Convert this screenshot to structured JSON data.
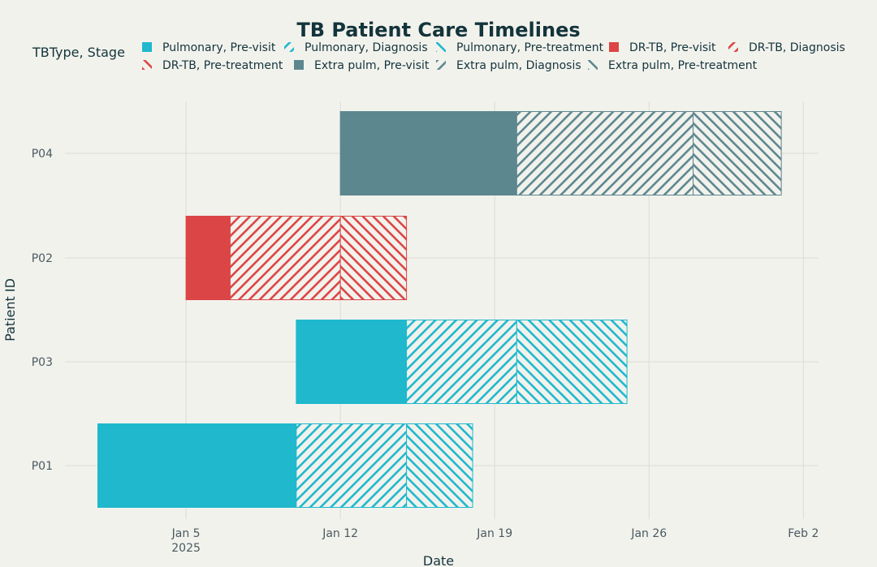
{
  "chart_data": {
    "type": "bar",
    "orientation": "horizontal",
    "title": "TB Patient Care Timelines",
    "xlabel": "Date",
    "ylabel": "Patient ID",
    "legend_title": "TBType, Stage",
    "legend_position": "top",
    "grid": true,
    "xlim": [
      "2025-01-01",
      "2025-02-02"
    ],
    "x_ticks": [
      {
        "date": "2025-01-05",
        "label": "Jan 5",
        "sublabel": "2025"
      },
      {
        "date": "2025-01-12",
        "label": "Jan 12",
        "sublabel": ""
      },
      {
        "date": "2025-01-19",
        "label": "Jan 19",
        "sublabel": ""
      },
      {
        "date": "2025-01-26",
        "label": "Jan 26",
        "sublabel": ""
      },
      {
        "date": "2025-02-02",
        "label": "Feb 2",
        "sublabel": ""
      }
    ],
    "categories": [
      "P01",
      "P03",
      "P02",
      "P04"
    ],
    "stage_patterns": {
      "Pre-visit": "solid",
      "Diagnosis": "forward-diagonal",
      "Pre-treatment": "backward-diagonal"
    },
    "type_colors": {
      "Pulmonary": "#1fb8cd",
      "DR-TB": "#db4545",
      "Extra pulm": "#5d878f"
    },
    "legend": [
      {
        "label": "Pulmonary, Pre-visit",
        "tbtype": "Pulmonary",
        "stage": "Pre-visit"
      },
      {
        "label": "Pulmonary, Diagnosis",
        "tbtype": "Pulmonary",
        "stage": "Diagnosis"
      },
      {
        "label": "Pulmonary, Pre-treatment",
        "tbtype": "Pulmonary",
        "stage": "Pre-treatment"
      },
      {
        "label": "DR-TB, Pre-visit",
        "tbtype": "DR-TB",
        "stage": "Pre-visit"
      },
      {
        "label": "DR-TB, Diagnosis",
        "tbtype": "DR-TB",
        "stage": "Diagnosis"
      },
      {
        "label": "DR-TB, Pre-treatment",
        "tbtype": "DR-TB",
        "stage": "Pre-treatment"
      },
      {
        "label": "Extra pulm, Pre-visit",
        "tbtype": "Extra pulm",
        "stage": "Pre-visit"
      },
      {
        "label": "Extra pulm, Diagnosis",
        "tbtype": "Extra pulm",
        "stage": "Diagnosis"
      },
      {
        "label": "Extra pulm, Pre-treatment",
        "tbtype": "Extra pulm",
        "stage": "Pre-treatment"
      }
    ],
    "series": [
      {
        "patient": "P01",
        "tbtype": "Pulmonary",
        "stage": "Pre-visit",
        "start": "2025-01-01",
        "end": "2025-01-10"
      },
      {
        "patient": "P01",
        "tbtype": "Pulmonary",
        "stage": "Diagnosis",
        "start": "2025-01-10",
        "end": "2025-01-15"
      },
      {
        "patient": "P01",
        "tbtype": "Pulmonary",
        "stage": "Pre-treatment",
        "start": "2025-01-15",
        "end": "2025-01-18"
      },
      {
        "patient": "P03",
        "tbtype": "Pulmonary",
        "stage": "Pre-visit",
        "start": "2025-01-10",
        "end": "2025-01-15"
      },
      {
        "patient": "P03",
        "tbtype": "Pulmonary",
        "stage": "Diagnosis",
        "start": "2025-01-15",
        "end": "2025-01-20"
      },
      {
        "patient": "P03",
        "tbtype": "Pulmonary",
        "stage": "Pre-treatment",
        "start": "2025-01-20",
        "end": "2025-01-25"
      },
      {
        "patient": "P02",
        "tbtype": "DR-TB",
        "stage": "Pre-visit",
        "start": "2025-01-05",
        "end": "2025-01-07"
      },
      {
        "patient": "P02",
        "tbtype": "DR-TB",
        "stage": "Diagnosis",
        "start": "2025-01-07",
        "end": "2025-01-12"
      },
      {
        "patient": "P02",
        "tbtype": "DR-TB",
        "stage": "Pre-treatment",
        "start": "2025-01-12",
        "end": "2025-01-15"
      },
      {
        "patient": "P04",
        "tbtype": "Extra pulm",
        "stage": "Pre-visit",
        "start": "2025-01-12",
        "end": "2025-01-20"
      },
      {
        "patient": "P04",
        "tbtype": "Extra pulm",
        "stage": "Diagnosis",
        "start": "2025-01-20",
        "end": "2025-01-28"
      },
      {
        "patient": "P04",
        "tbtype": "Extra pulm",
        "stage": "Pre-treatment",
        "start": "2025-01-28",
        "end": "2025-02-01"
      }
    ]
  }
}
